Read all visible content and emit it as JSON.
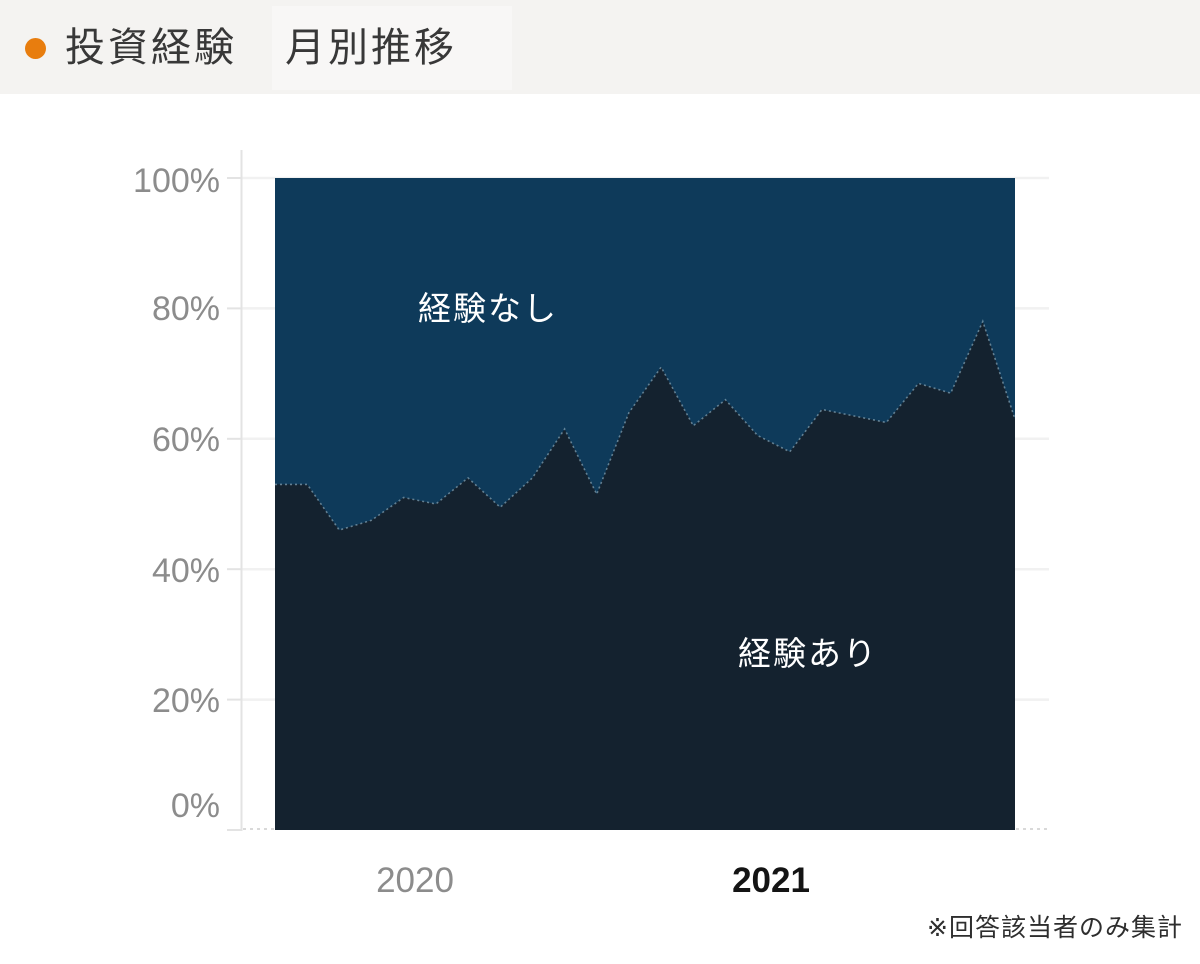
{
  "header": {
    "title_main": "投資経験",
    "title_sub": "月別推移",
    "bullet_color": "#e87d0e"
  },
  "footnote": "※回答該当者のみ集計",
  "chart_data": {
    "type": "area",
    "stacked": true,
    "unit": "percent",
    "title": "投資経験 月別推移",
    "x": [
      "2020-01",
      "2020-02",
      "2020-03",
      "2020-04",
      "2020-05",
      "2020-06",
      "2020-07",
      "2020-08",
      "2020-09",
      "2020-10",
      "2020-11",
      "2020-12",
      "2021-01",
      "2021-02",
      "2021-03",
      "2021-04",
      "2021-05",
      "2021-06",
      "2021-07",
      "2021-08",
      "2021-09",
      "2021-10",
      "2021-11",
      "2021-12"
    ],
    "series": [
      {
        "name": "経験あり",
        "color": "#14222f",
        "values": [
          53,
          53,
          46,
          47.5,
          51,
          50,
          54,
          49.5,
          54,
          61.5,
          51.5,
          64,
          71,
          62,
          66,
          60.5,
          58,
          64.5,
          63.5,
          62.5,
          68.5,
          67,
          78,
          63
        ]
      },
      {
        "name": "経験なし",
        "color": "#0e3a5a",
        "values": [
          47,
          47,
          54,
          52.5,
          49,
          50,
          46,
          50.5,
          46,
          38.5,
          48.5,
          36,
          29,
          38,
          34,
          39.5,
          42,
          35.5,
          36.5,
          37.5,
          31.5,
          33,
          22,
          37
        ]
      }
    ],
    "labels": {
      "upper": "経験なし",
      "lower": "経験あり"
    },
    "y_ticks": [
      "100%",
      "80%",
      "60%",
      "40%",
      "20%",
      "0%"
    ],
    "ylim": [
      0,
      100
    ],
    "grid": true,
    "legend_position": "none",
    "x_year_labels": [
      {
        "label": "2020",
        "emphasis": false
      },
      {
        "label": "2021",
        "emphasis": true
      }
    ],
    "boundary_line_color": "#a7c4d4",
    "grid_color": "#f1f1f1",
    "axis_color": "#e3e3e3"
  }
}
